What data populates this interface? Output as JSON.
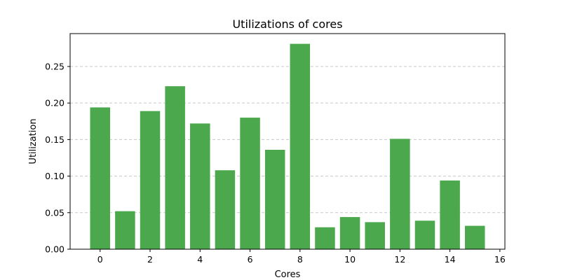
{
  "chart_data": {
    "type": "bar",
    "title": "Utilizations of cores",
    "xlabel": "Cores",
    "ylabel": "Utilization",
    "x": [
      0,
      1,
      2,
      3,
      4,
      5,
      6,
      7,
      8,
      9,
      10,
      11,
      12,
      13,
      14,
      15
    ],
    "values": [
      0.194,
      0.052,
      0.189,
      0.223,
      0.172,
      0.108,
      0.18,
      0.136,
      0.281,
      0.03,
      0.044,
      0.037,
      0.151,
      0.039,
      0.094,
      0.032
    ],
    "xlim": [
      -1.2,
      16.2
    ],
    "ylim": [
      0,
      0.295
    ],
    "xticks": [
      0,
      2,
      4,
      6,
      8,
      10,
      12,
      14,
      16
    ],
    "yticks": [
      0,
      0.05,
      0.1,
      0.15,
      0.2,
      0.25
    ],
    "ytick_labels": [
      "0.00",
      "0.05",
      "0.10",
      "0.15",
      "0.20",
      "0.25"
    ],
    "grid": "y-dashed",
    "bar_color": "#4ca84c",
    "legend": "none"
  }
}
